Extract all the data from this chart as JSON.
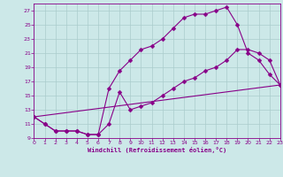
{
  "background_color": "#cce8e8",
  "grid_color": "#aacccc",
  "line_color": "#880088",
  "markersize": 2.5,
  "linewidth": 0.8,
  "xlim": [
    0,
    23
  ],
  "ylim": [
    9,
    28
  ],
  "xticks": [
    0,
    1,
    2,
    3,
    4,
    5,
    6,
    7,
    8,
    9,
    10,
    11,
    12,
    13,
    14,
    15,
    16,
    17,
    18,
    19,
    20,
    21,
    22,
    23
  ],
  "yticks": [
    9,
    11,
    13,
    15,
    17,
    19,
    21,
    23,
    25,
    27
  ],
  "xlabel": "Windchill (Refroidissement éolien,°C)",
  "series": [
    {
      "x": [
        0,
        1,
        2,
        3,
        4,
        5,
        6,
        7,
        8,
        9,
        10,
        11,
        12,
        13,
        14,
        15,
        16,
        17,
        18,
        19,
        20,
        21,
        22,
        23
      ],
      "y": [
        12,
        11,
        10,
        10,
        10,
        9.5,
        9.5,
        16,
        18.5,
        20,
        21.5,
        22,
        23,
        24.5,
        26,
        26.5,
        26.5,
        27,
        27.5,
        25,
        21,
        20,
        18,
        16.5
      ]
    },
    {
      "x": [
        0,
        1,
        2,
        3,
        4,
        5,
        6,
        7,
        8,
        9,
        10,
        11,
        12,
        13,
        14,
        15,
        16,
        17,
        18,
        19,
        20,
        21,
        22,
        23
      ],
      "y": [
        12,
        11,
        10,
        10,
        10,
        9.5,
        9.5,
        11,
        15.5,
        13,
        13.5,
        14,
        15,
        16,
        17,
        17.5,
        18.5,
        19,
        20,
        21.5,
        21.5,
        21,
        20,
        16.5
      ]
    },
    {
      "x": [
        0,
        23
      ],
      "y": [
        12,
        16.5
      ]
    }
  ]
}
